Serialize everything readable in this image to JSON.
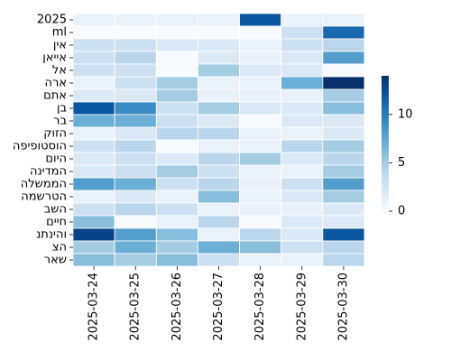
{
  "chart_data": {
    "type": "heatmap",
    "x": [
      "2025-03-24",
      "2025-03-25",
      "2025-03-26",
      "2025-03-27",
      "2025-03-28",
      "2025-03-29",
      "2025-03-30"
    ],
    "y": [
      "2025",
      "ml",
      "אין",
      "אייאן",
      "אל",
      "ארה",
      "אתם",
      "בן",
      "בר",
      "הזוק",
      "הוסטופיפה",
      "היום",
      "המדינה",
      "הממשלה",
      "הטרשמה",
      "השב",
      "חיים",
      "והינתנ",
      "הצ",
      "שאר"
    ],
    "values": [
      [
        1,
        1,
        1,
        1,
        12,
        1,
        1
      ],
      [
        0,
        0,
        0,
        0,
        0,
        3,
        11
      ],
      [
        3,
        3,
        2,
        2,
        1,
        3,
        4
      ],
      [
        3,
        4,
        0,
        2,
        1,
        2,
        8
      ],
      [
        3,
        3,
        0,
        5,
        2,
        2,
        0
      ],
      [
        1,
        3,
        5,
        1,
        1,
        7,
        14
      ],
      [
        2,
        2,
        5,
        1,
        1,
        1,
        5
      ],
      [
        12,
        9,
        3,
        5,
        2,
        2,
        6
      ],
      [
        7,
        7,
        3,
        2,
        0,
        2,
        2
      ],
      [
        1,
        2,
        4,
        4,
        1,
        1,
        2
      ],
      [
        3,
        4,
        0,
        1,
        1,
        4,
        5
      ],
      [
        2,
        3,
        2,
        4,
        5,
        2,
        4
      ],
      [
        2,
        3,
        5,
        3,
        1,
        1,
        5
      ],
      [
        8,
        7,
        3,
        4,
        1,
        3,
        8
      ],
      [
        1,
        2,
        1,
        6,
        1,
        2,
        5
      ],
      [
        3,
        4,
        3,
        1,
        1,
        1,
        2
      ],
      [
        6,
        0,
        1,
        4,
        0,
        2,
        2
      ],
      [
        13,
        8,
        6,
        1,
        4,
        2,
        12
      ],
      [
        5,
        7,
        5,
        7,
        6,
        3,
        4
      ],
      [
        6,
        5,
        6,
        3,
        1,
        1,
        4
      ]
    ],
    "colorbar": {
      "min": 0,
      "max": 14,
      "ticks": [
        "0",
        "5",
        "10"
      ]
    },
    "colormap": "Blues",
    "title": "",
    "xlabel": "",
    "ylabel": ""
  }
}
